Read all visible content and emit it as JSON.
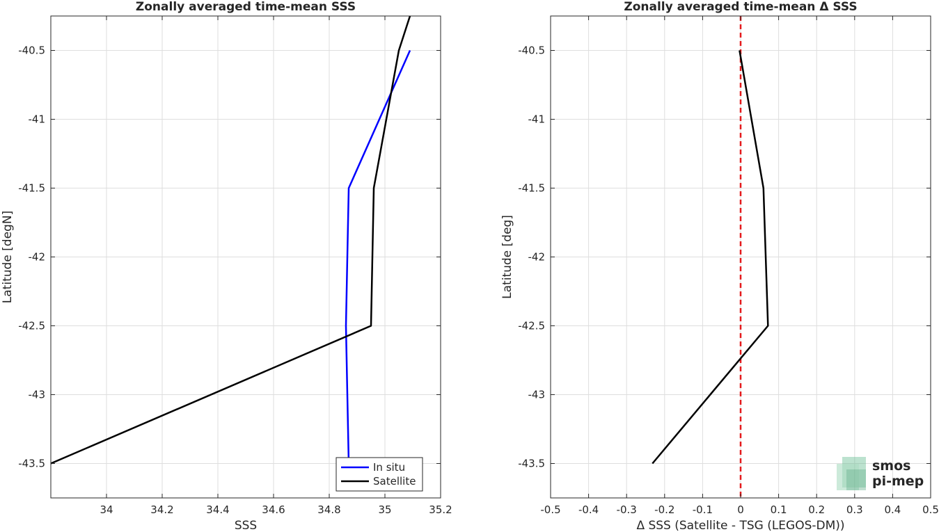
{
  "chart_data": [
    {
      "type": "line",
      "title": "Zonally averaged time-mean SSS",
      "xlabel": "SSS",
      "ylabel": "Latitude [degN]",
      "xlim": [
        33.8,
        35.2
      ],
      "ylim": [
        -43.75,
        -40.25
      ],
      "xticks": [
        34,
        34.2,
        34.4,
        34.6,
        34.8,
        35,
        35.2
      ],
      "xtick_labels": [
        "34",
        "34.2",
        "34.4",
        "34.6",
        "34.8",
        "35",
        "35.2"
      ],
      "yticks": [
        -40.5,
        -41,
        -41.5,
        -42,
        -42.5,
        -43,
        -43.5
      ],
      "ytick_labels": [
        "-40.5",
        "-41",
        "-41.5",
        "-42",
        "-42.5",
        "-43",
        "-43.5"
      ],
      "grid": true,
      "legend": "bottom-right",
      "series": [
        {
          "name": "In situ",
          "color": "#0000ff",
          "x": [
            35.09,
            34.87,
            34.86,
            34.87
          ],
          "y": [
            -40.5,
            -41.5,
            -42.5,
            -43.5
          ]
        },
        {
          "name": "Satellite",
          "color": "#000000",
          "x": [
            35.09,
            35.05,
            34.96,
            34.95,
            33.8
          ],
          "y": [
            -40.25,
            -40.5,
            -41.5,
            -42.5,
            -43.5
          ]
        }
      ]
    },
    {
      "type": "line",
      "title": "Zonally averaged time-mean Δ SSS",
      "xlabel": "Δ SSS (Satellite - TSG (LEGOS-DM))",
      "ylabel": "Latitude [deg]",
      "xlim": [
        -0.5,
        0.5
      ],
      "ylim": [
        -43.75,
        -40.25
      ],
      "xticks": [
        -0.5,
        -0.4,
        -0.3,
        -0.2,
        -0.1,
        0,
        0.1,
        0.2,
        0.3,
        0.4,
        0.5
      ],
      "xtick_labels": [
        "-0.5",
        "-0.4",
        "-0.3",
        "-0.2",
        "-0.1",
        "0",
        "0.1",
        "0.2",
        "0.3",
        "0.4",
        "0.5"
      ],
      "yticks": [
        -40.5,
        -41,
        -41.5,
        -42,
        -42.5,
        -43,
        -43.5
      ],
      "ytick_labels": [
        "-40.5",
        "-41",
        "-41.5",
        "-42",
        "-42.5",
        "-43",
        "-43.5"
      ],
      "grid": true,
      "zero_line": {
        "x": 0,
        "color": "#e41a1c",
        "style": "dashed"
      },
      "series": [
        {
          "color": "#000000",
          "x": [
            -0.003,
            0.06,
            0.072,
            -0.232
          ],
          "y": [
            -40.5,
            -41.5,
            -42.5,
            -43.5
          ]
        }
      ]
    }
  ],
  "logo": {
    "line1": "smos",
    "line2": "pi-mep",
    "color": "#7fc8a0"
  }
}
